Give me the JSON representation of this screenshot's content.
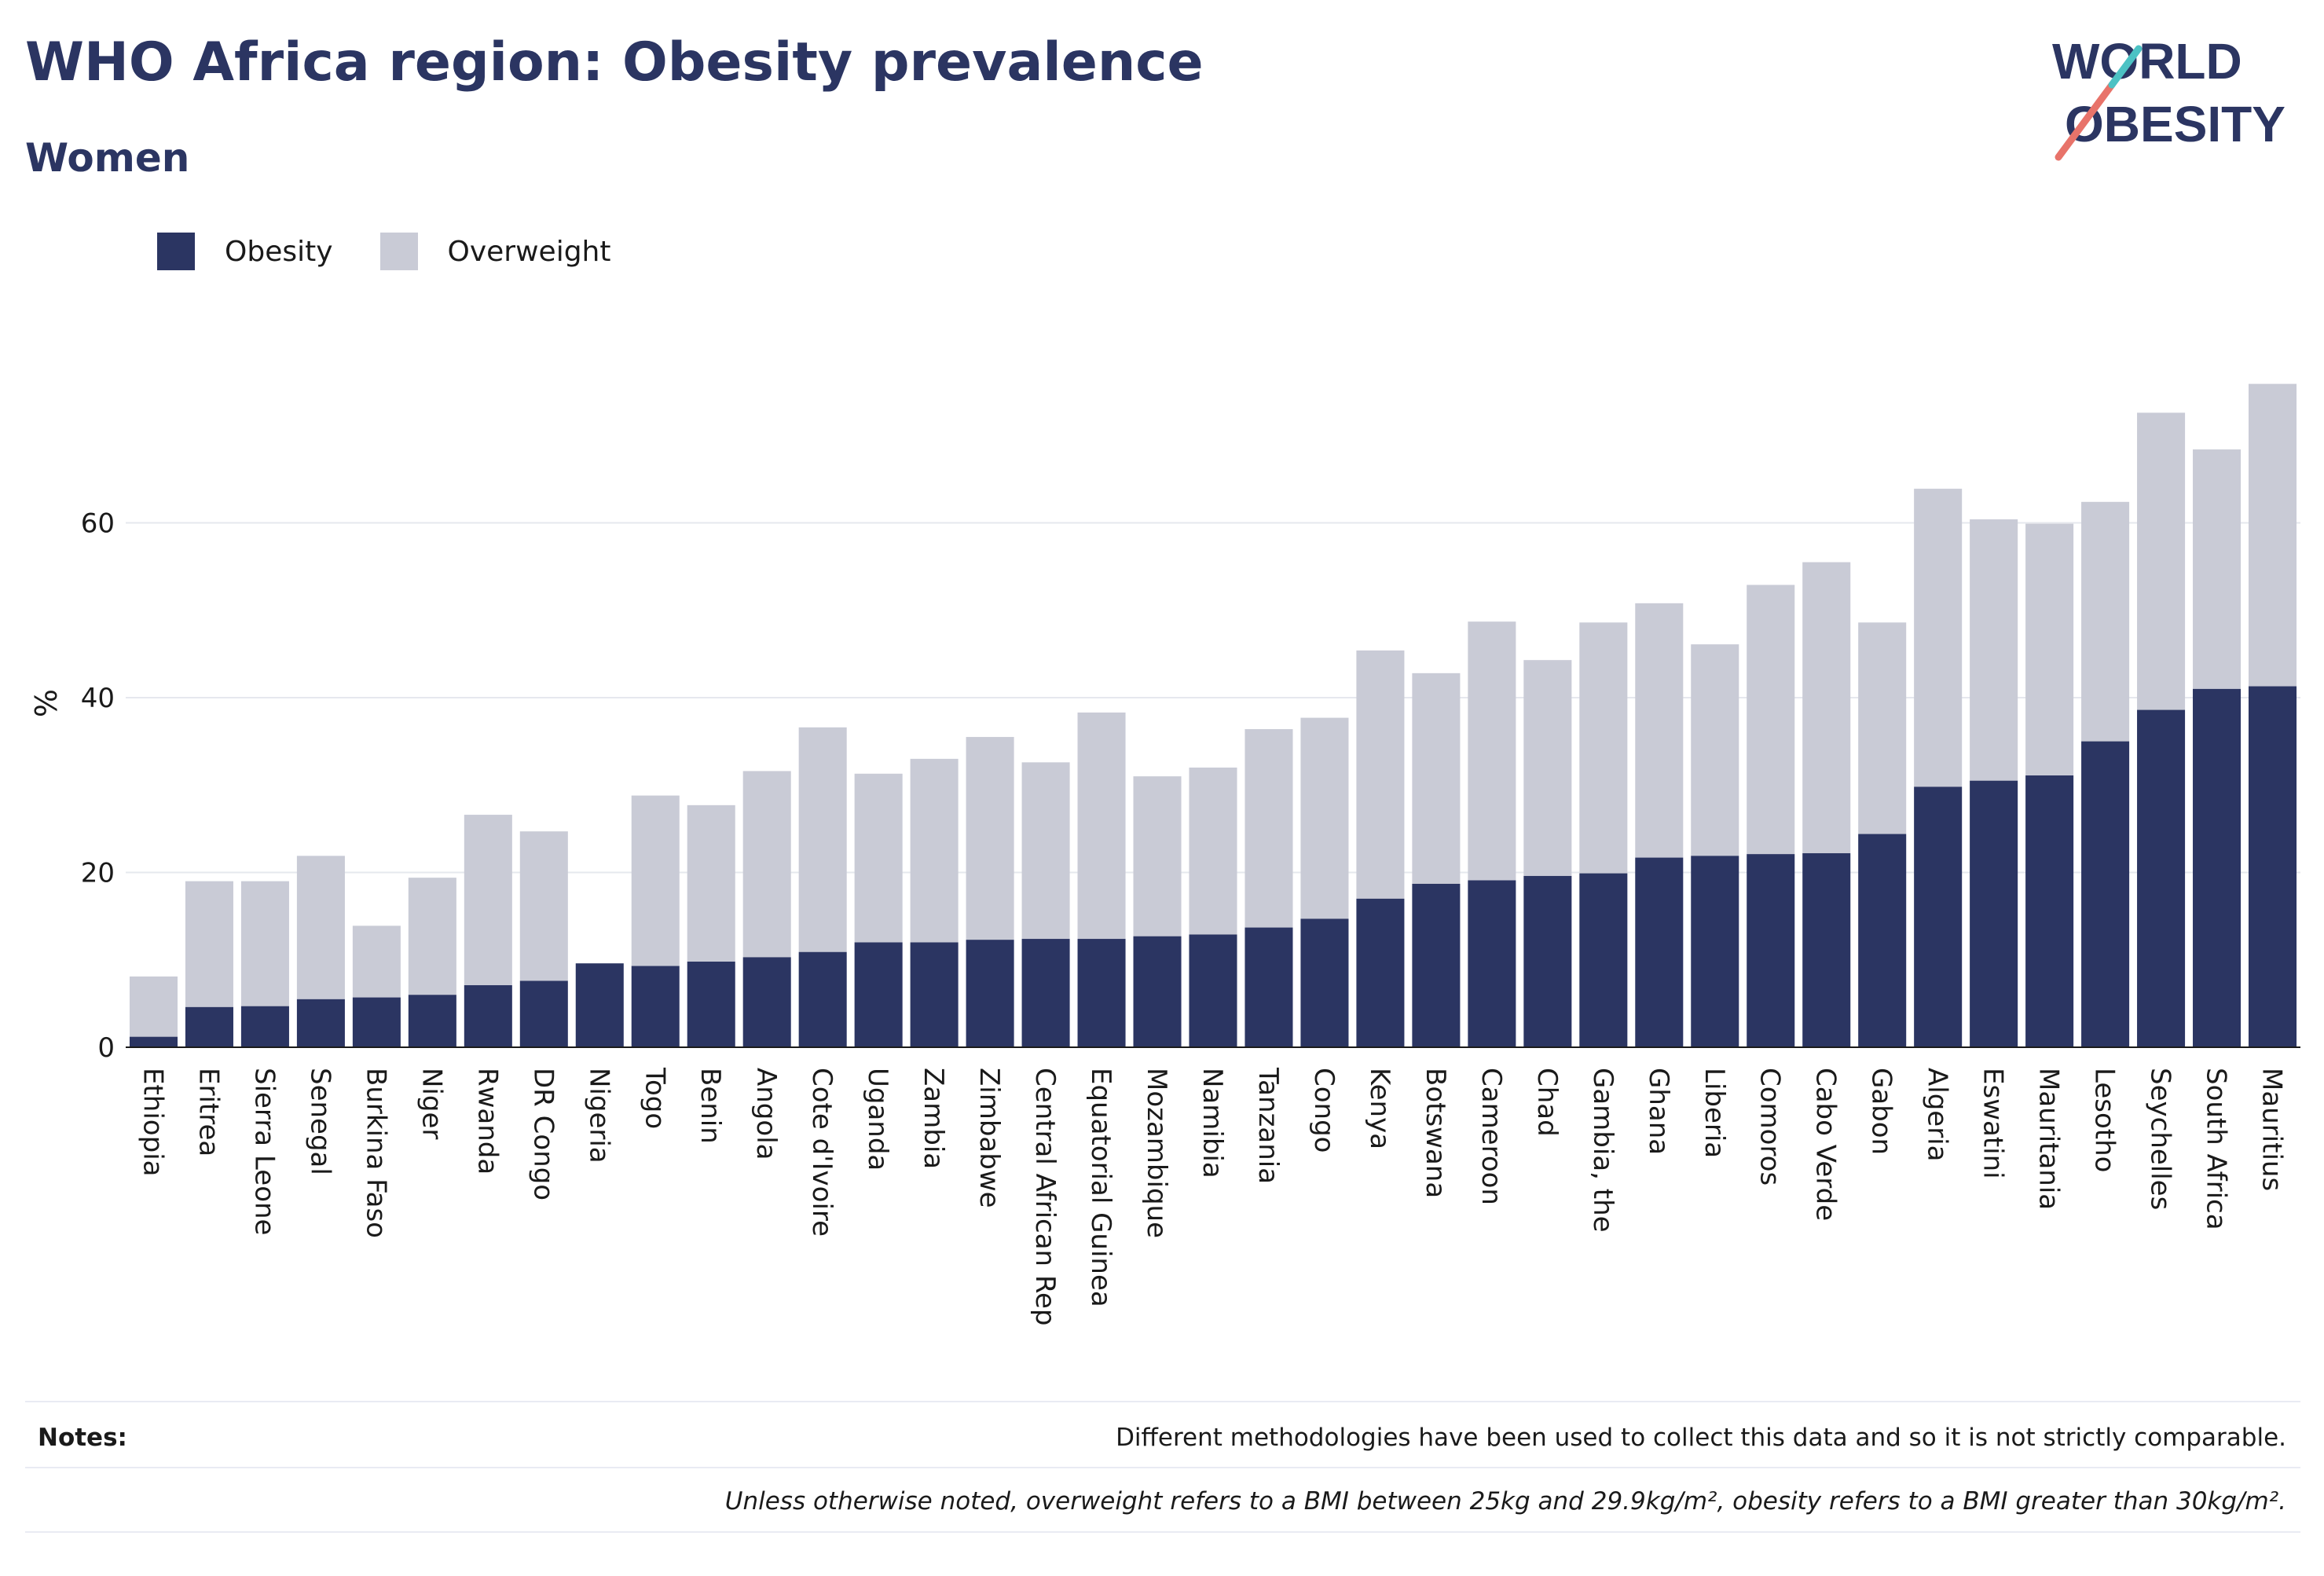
{
  "header": {
    "title": "WHO Africa region: Obesity prevalence",
    "subtitle": "Women",
    "logo_line1": "WORLD",
    "logo_line2": "OBESITY"
  },
  "legend": {
    "items": [
      {
        "label": "Obesity",
        "color": "#2b3562"
      },
      {
        "label": "Overweight",
        "color": "#c9cbd6"
      }
    ]
  },
  "chart_data": {
    "type": "bar",
    "stacked": true,
    "ylabel": "%",
    "xlabel": "",
    "ylim": [
      0,
      78
    ],
    "yticks": [
      0,
      20,
      40,
      60
    ],
    "grid": true,
    "legend_position": "top-left",
    "categories": [
      "Ethiopia",
      "Eritrea",
      "Sierra Leone",
      "Senegal",
      "Burkina Faso",
      "Niger",
      "Rwanda",
      "DR Congo",
      "Nigeria",
      "Togo",
      "Benin",
      "Angola",
      "Cote d'Ivoire",
      "Uganda",
      "Zambia",
      "Zimbabwe",
      "Central African Rep",
      "Equatorial Guinea",
      "Mozambique",
      "Namibia",
      "Tanzania",
      "Congo",
      "Kenya",
      "Botswana",
      "Cameroon",
      "Chad",
      "Gambia, the",
      "Ghana",
      "Liberia",
      "Comoros",
      "Cabo Verde",
      "Gabon",
      "Algeria",
      "Eswatini",
      "Mauritania",
      "Lesotho",
      "Seychelles",
      "South Africa",
      "Mauritius"
    ],
    "series": [
      {
        "name": "Obesity",
        "color": "#2b3562",
        "values": [
          1.2,
          4.6,
          4.7,
          5.5,
          5.7,
          6.0,
          7.1,
          7.6,
          9.6,
          9.3,
          9.8,
          10.3,
          10.9,
          12.0,
          12.0,
          12.3,
          12.4,
          12.4,
          12.7,
          12.9,
          13.7,
          14.7,
          17.0,
          18.7,
          19.1,
          19.6,
          19.9,
          21.7,
          21.9,
          22.1,
          22.2,
          24.4,
          29.8,
          30.5,
          31.1,
          35.0,
          38.6,
          41.0,
          41.3
        ]
      },
      {
        "name": "Overweight",
        "color": "#c9cbd6",
        "values": [
          6.9,
          14.4,
          14.3,
          16.4,
          8.2,
          13.4,
          19.5,
          17.1,
          0.0,
          19.5,
          17.9,
          21.3,
          25.7,
          19.3,
          21.0,
          23.2,
          20.2,
          25.9,
          18.3,
          19.1,
          22.7,
          23.0,
          28.4,
          24.1,
          29.6,
          24.7,
          28.7,
          29.1,
          24.2,
          30.8,
          33.3,
          24.2,
          34.1,
          29.9,
          28.8,
          27.4,
          34.0,
          27.4,
          34.6
        ]
      }
    ]
  },
  "notes": {
    "label": "Notes:",
    "text1": "Different methodologies have been used to collect this data and so it is not strictly comparable.",
    "text2": "Unless otherwise noted, overweight refers to a BMI between 25kg and 29.9kg/m², obesity refers to a BMI greater than 30kg/m²."
  }
}
